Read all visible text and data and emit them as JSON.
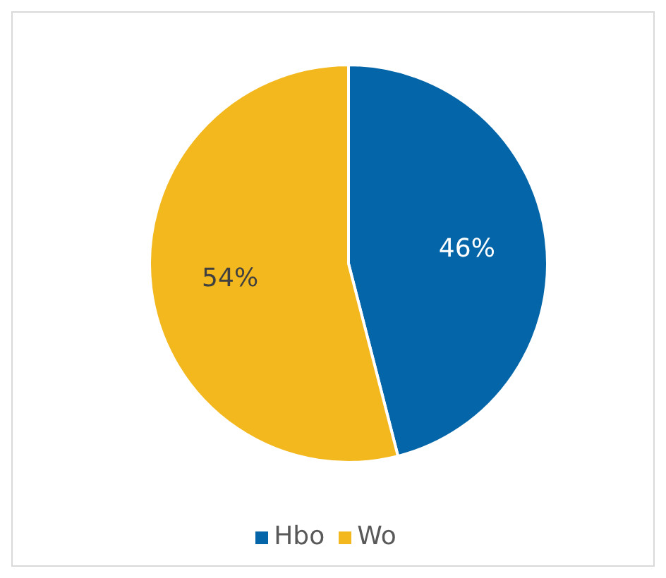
{
  "chart_data": {
    "type": "pie",
    "categories": [
      "Hbo",
      "Wo"
    ],
    "values": [
      46,
      54
    ],
    "colors": [
      "#0466a8",
      "#f2b81e"
    ],
    "value_labels": [
      "46%",
      "54%"
    ],
    "legend": "bottom"
  }
}
